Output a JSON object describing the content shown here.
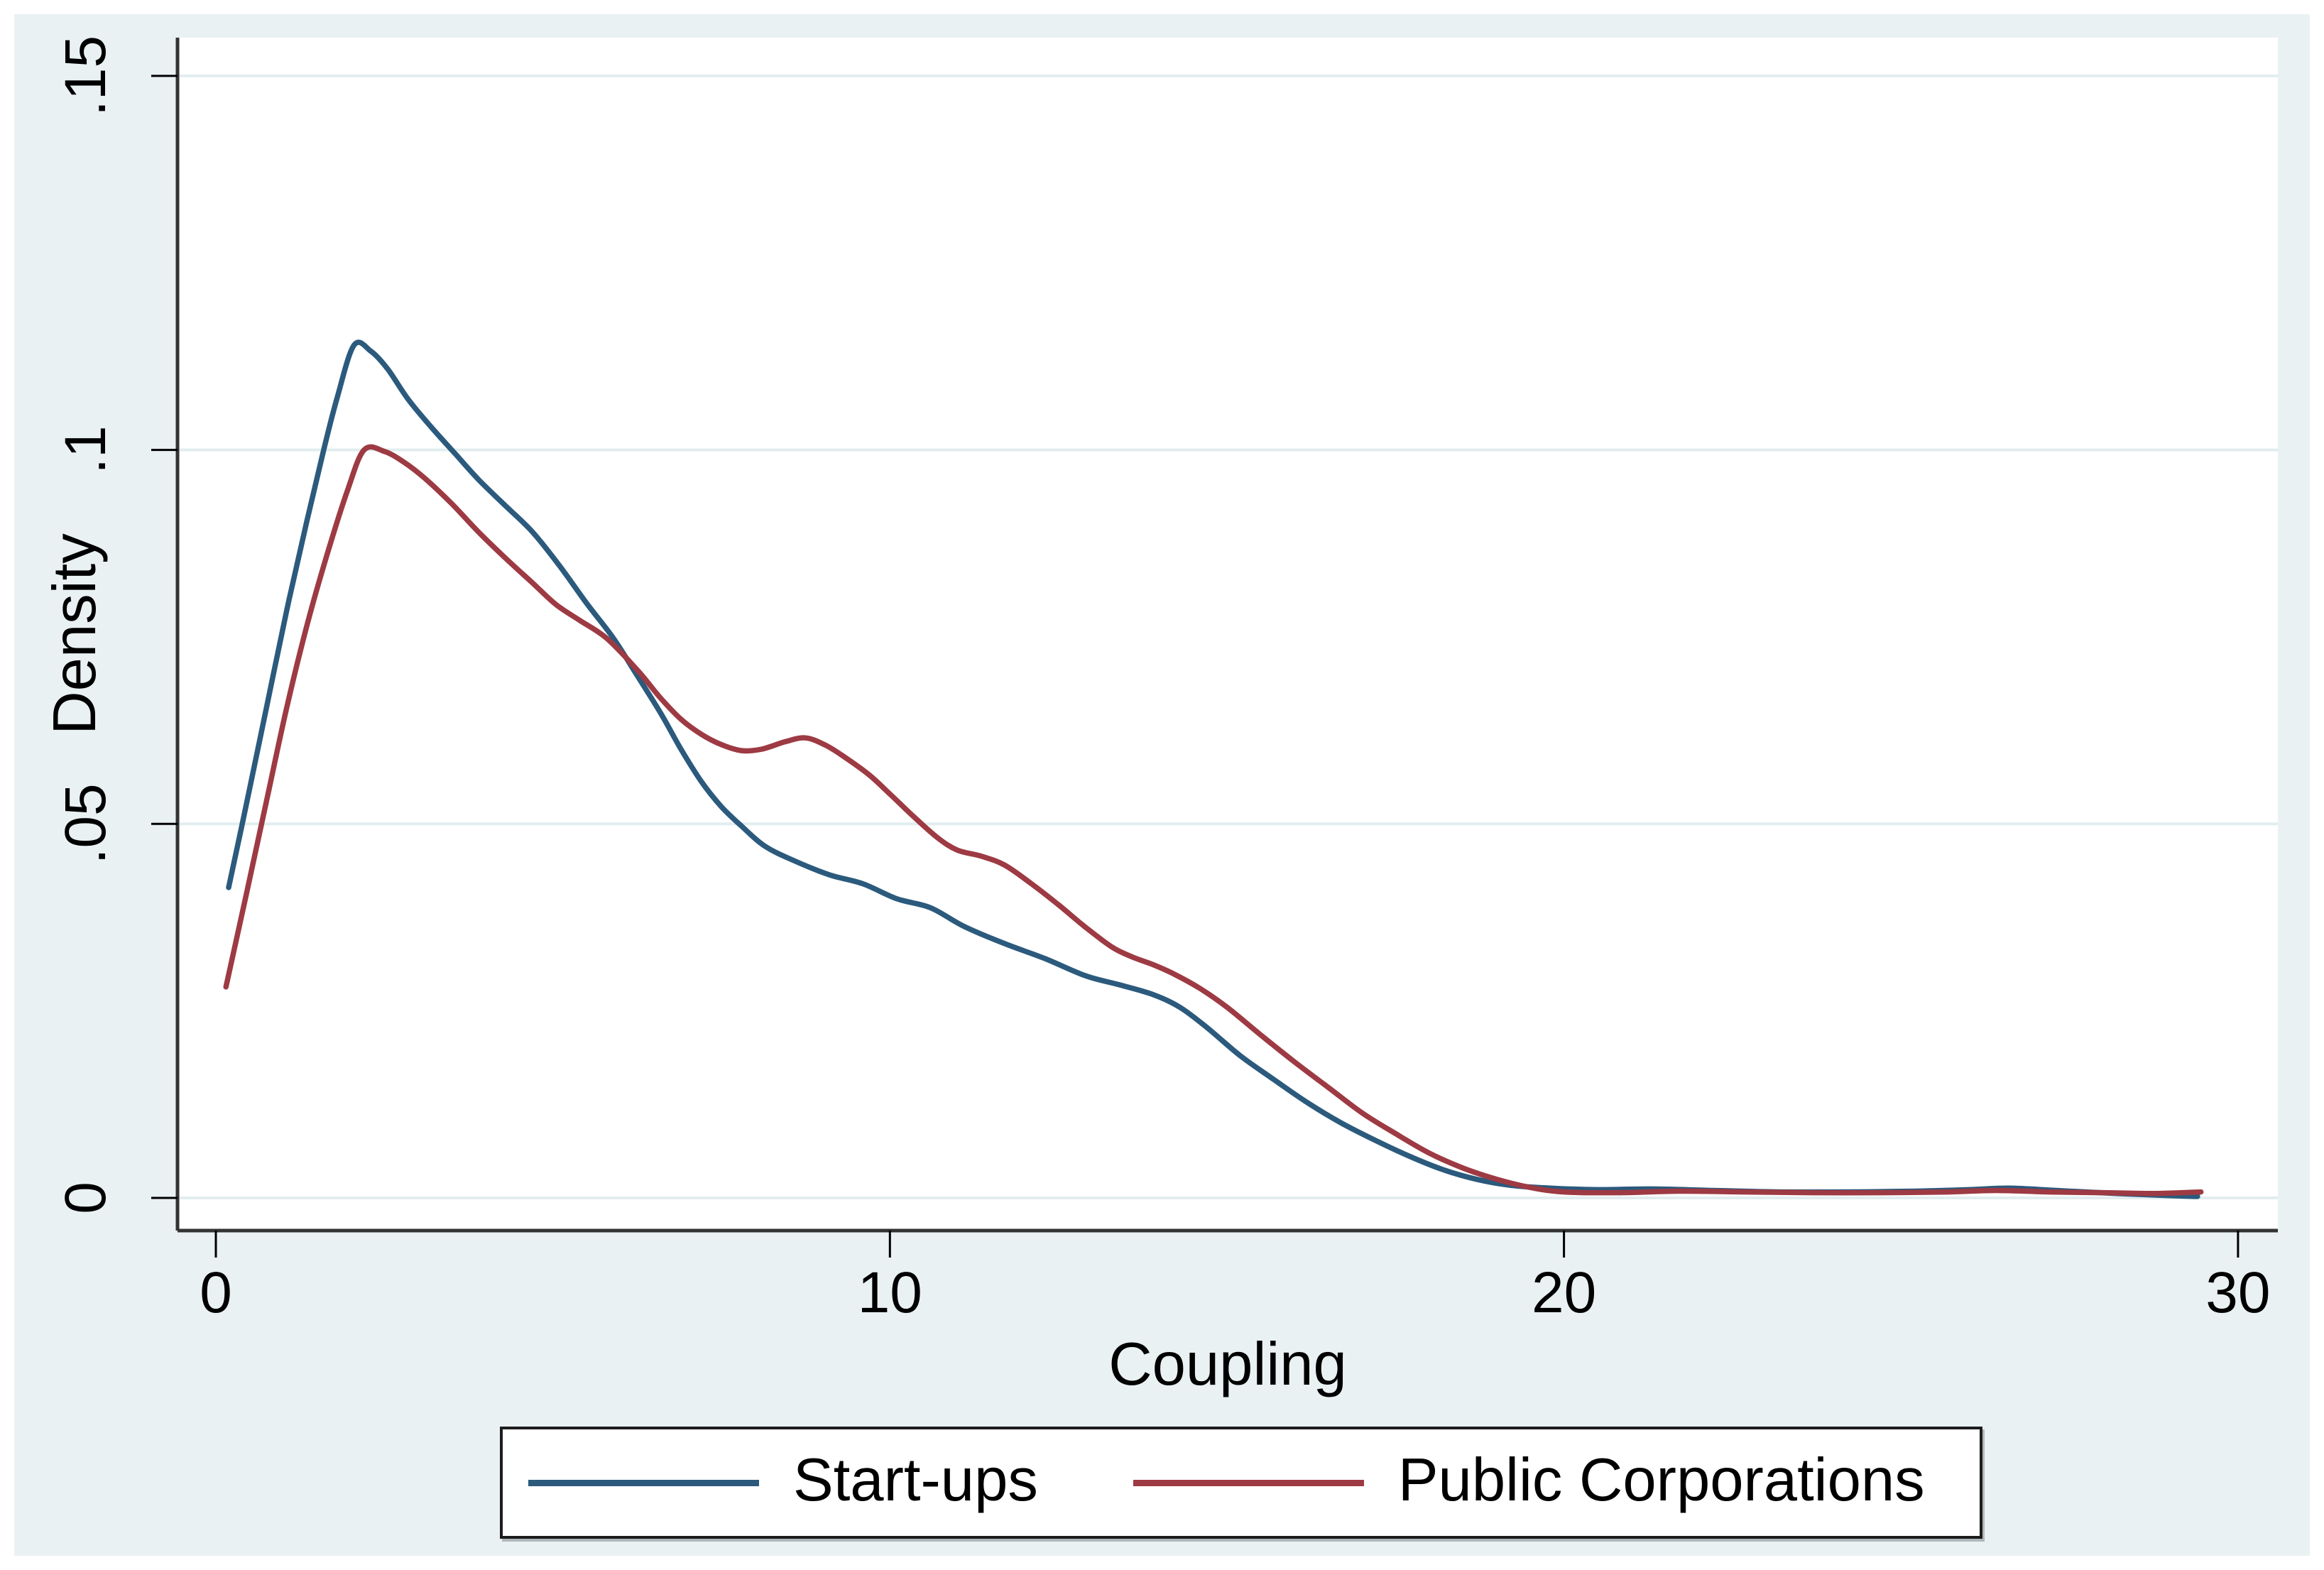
{
  "figure": {
    "background_color": "#eaf1f3",
    "plot_background": "#ffffff",
    "grid_color": "#e2edef",
    "axis_color": "#333333",
    "tick_color": "#000000",
    "text_color": "#000000"
  },
  "chart_data": {
    "type": "line",
    "title": "",
    "xlabel": "Coupling",
    "ylabel": "Density",
    "xlim": [
      -0.57,
      30.6
    ],
    "ylim": [
      0,
      0.1595
    ],
    "x_ticks": [
      0,
      10,
      20,
      30
    ],
    "x_tick_labels": [
      "0",
      "10",
      "20",
      "30"
    ],
    "y_ticks": [
      0,
      0.05,
      0.1,
      0.15
    ],
    "y_tick_labels": [
      "0",
      ".05",
      ".1",
      ".15"
    ],
    "grid": "horizontal gridlines at each y tick",
    "legend_position": "bottom",
    "series": [
      {
        "name": "Start-ups",
        "color": "#2b5a7d",
        "points": [
          [
            0.19,
            0.0415
          ],
          [
            0.45,
            0.0525
          ],
          [
            0.75,
            0.0655
          ],
          [
            1.05,
            0.0785
          ],
          [
            1.35,
            0.0905
          ],
          [
            1.6,
            0.1
          ],
          [
            1.8,
            0.107
          ],
          [
            2.05,
            0.114
          ],
          [
            2.3,
            0.1132
          ],
          [
            2.55,
            0.1108
          ],
          [
            2.85,
            0.1068
          ],
          [
            3.2,
            0.103
          ],
          [
            3.55,
            0.0995
          ],
          [
            3.9,
            0.096
          ],
          [
            4.3,
            0.0925
          ],
          [
            4.7,
            0.089
          ],
          [
            5.1,
            0.0845
          ],
          [
            5.5,
            0.0795
          ],
          [
            5.9,
            0.0748
          ],
          [
            6.26,
            0.0697
          ],
          [
            6.6,
            0.0648
          ],
          [
            6.9,
            0.06
          ],
          [
            7.2,
            0.0557
          ],
          [
            7.5,
            0.0523
          ],
          [
            7.8,
            0.0497
          ],
          [
            8.15,
            0.047
          ],
          [
            8.6,
            0.045
          ],
          [
            9.1,
            0.0432
          ],
          [
            9.6,
            0.042
          ],
          [
            10.1,
            0.04
          ],
          [
            10.6,
            0.0388
          ],
          [
            11.1,
            0.0363
          ],
          [
            11.7,
            0.034
          ],
          [
            12.3,
            0.032
          ],
          [
            12.9,
            0.0297
          ],
          [
            13.4,
            0.0285
          ],
          [
            13.9,
            0.0272
          ],
          [
            14.3,
            0.0255
          ],
          [
            14.7,
            0.0228
          ],
          [
            15.2,
            0.019
          ],
          [
            15.7,
            0.0158
          ],
          [
            16.2,
            0.0127
          ],
          [
            16.7,
            0.01
          ],
          [
            17.2,
            0.0077
          ],
          [
            17.7,
            0.0056
          ],
          [
            18.2,
            0.0038
          ],
          [
            18.7,
            0.0025
          ],
          [
            19.2,
            0.0017
          ],
          [
            19.8,
            0.0013
          ],
          [
            20.5,
            0.0011
          ],
          [
            21.3,
            0.0012
          ],
          [
            22.2,
            0.001
          ],
          [
            23.2,
            0.0008
          ],
          [
            24.2,
            0.0008
          ],
          [
            25.2,
            0.0009
          ],
          [
            26.0,
            0.0011
          ],
          [
            26.6,
            0.0013
          ],
          [
            27.3,
            0.001
          ],
          [
            28.2,
            0.0006
          ],
          [
            29.0,
            0.0003
          ],
          [
            29.4,
            0.0002
          ]
        ]
      },
      {
        "name": "Public Corporations",
        "color": "#9d3a43",
        "points": [
          [
            0.15,
            0.0282
          ],
          [
            0.45,
            0.0405
          ],
          [
            0.75,
            0.053
          ],
          [
            1.05,
            0.0655
          ],
          [
            1.35,
            0.0765
          ],
          [
            1.65,
            0.086
          ],
          [
            1.95,
            0.0945
          ],
          [
            2.2,
            0.1
          ],
          [
            2.5,
            0.0998
          ],
          [
            2.8,
            0.0983
          ],
          [
            3.1,
            0.0962
          ],
          [
            3.5,
            0.0928
          ],
          [
            3.9,
            0.089
          ],
          [
            4.3,
            0.0855
          ],
          [
            4.7,
            0.0822
          ],
          [
            5.05,
            0.0793
          ],
          [
            5.4,
            0.0772
          ],
          [
            5.8,
            0.0748
          ],
          [
            6.26,
            0.0705
          ],
          [
            6.6,
            0.0668
          ],
          [
            6.9,
            0.064
          ],
          [
            7.2,
            0.062
          ],
          [
            7.5,
            0.0606
          ],
          [
            7.8,
            0.0598
          ],
          [
            8.1,
            0.06
          ],
          [
            8.45,
            0.061
          ],
          [
            8.75,
            0.0615
          ],
          [
            9.05,
            0.0605
          ],
          [
            9.35,
            0.0588
          ],
          [
            9.7,
            0.0565
          ],
          [
            10.0,
            0.054
          ],
          [
            10.35,
            0.051
          ],
          [
            10.7,
            0.0482
          ],
          [
            11.0,
            0.0465
          ],
          [
            11.35,
            0.0457
          ],
          [
            11.7,
            0.0445
          ],
          [
            12.1,
            0.042
          ],
          [
            12.5,
            0.0392
          ],
          [
            12.9,
            0.0362
          ],
          [
            13.3,
            0.0335
          ],
          [
            13.6,
            0.0322
          ],
          [
            13.9,
            0.0312
          ],
          [
            14.2,
            0.03
          ],
          [
            14.6,
            0.028
          ],
          [
            15.0,
            0.0255
          ],
          [
            15.5,
            0.0218
          ],
          [
            16.0,
            0.0182
          ],
          [
            16.5,
            0.0148
          ],
          [
            17.0,
            0.0114
          ],
          [
            17.5,
            0.0086
          ],
          [
            18.0,
            0.006
          ],
          [
            18.5,
            0.004
          ],
          [
            19.0,
            0.0025
          ],
          [
            19.5,
            0.0014
          ],
          [
            20.0,
            0.0008
          ],
          [
            20.8,
            0.0007
          ],
          [
            21.7,
            0.0009
          ],
          [
            22.7,
            0.0008
          ],
          [
            23.7,
            0.0007
          ],
          [
            24.7,
            0.0007
          ],
          [
            25.7,
            0.0008
          ],
          [
            26.4,
            0.001
          ],
          [
            27.2,
            0.0008
          ],
          [
            28.0,
            0.0007
          ],
          [
            28.8,
            0.0006
          ],
          [
            29.45,
            0.0008
          ]
        ]
      }
    ]
  },
  "legend": {
    "items": [
      {
        "label": "Start-ups",
        "color": "#2b5a7d"
      },
      {
        "label": "Public Corporations",
        "color": "#9d3a43"
      }
    ]
  }
}
